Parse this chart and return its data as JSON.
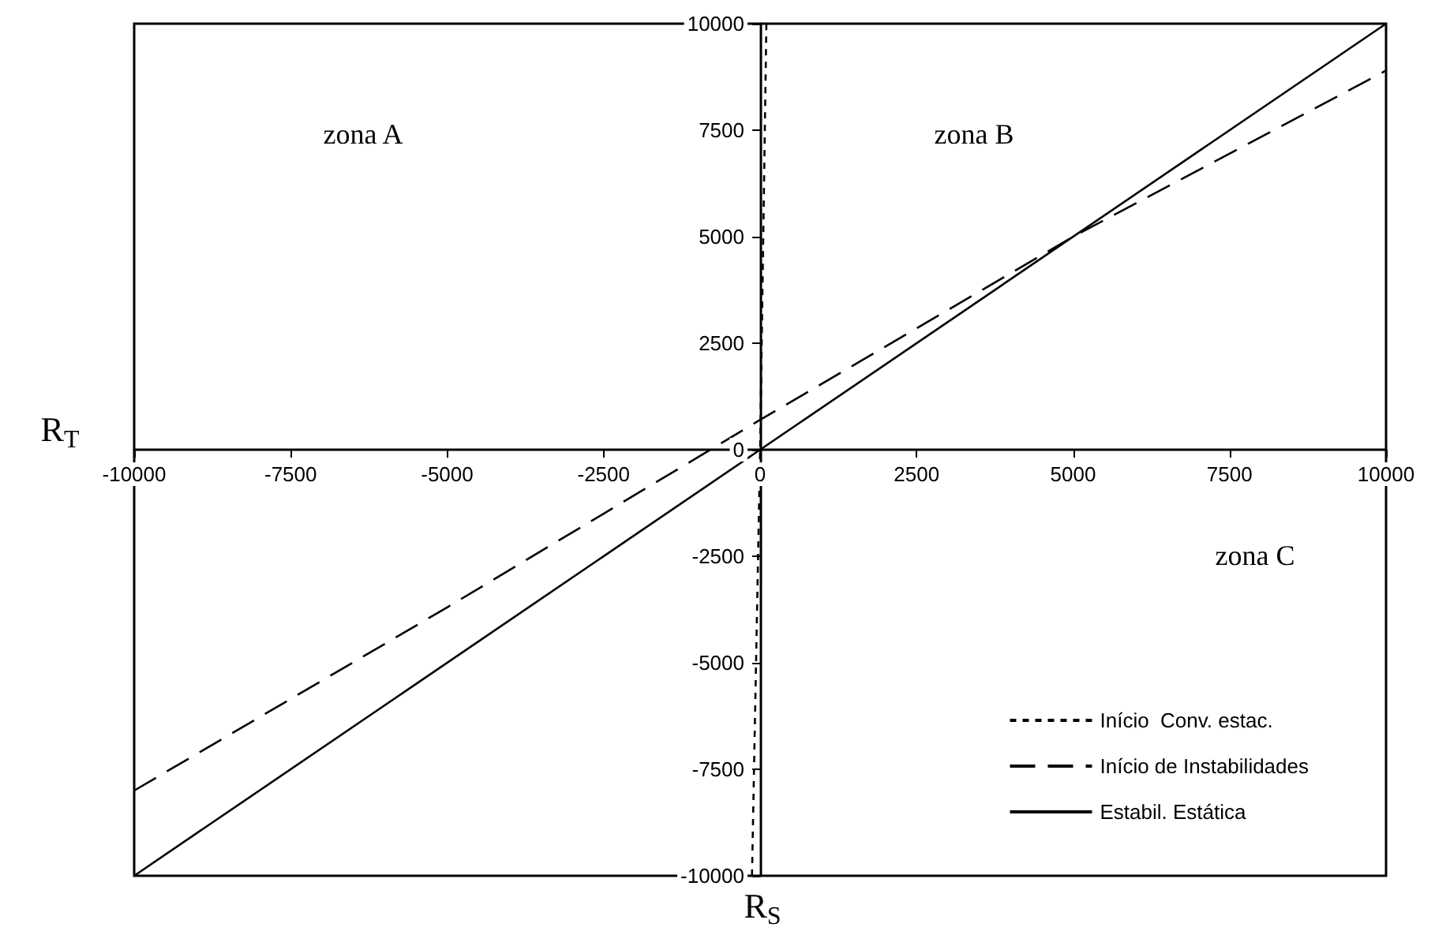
{
  "chart_data": {
    "type": "line",
    "xlabel": "R$_{S}$",
    "ylabel": "R$_{T}$",
    "xlim": [
      -10000,
      10000
    ],
    "ylim": [
      -10000,
      10000
    ],
    "xticks": [
      -10000,
      -7500,
      -5000,
      -2500,
      0,
      2500,
      5000,
      7500,
      10000
    ],
    "yticks": [
      -10000,
      -7500,
      -5000,
      -2500,
      0,
      2500,
      5000,
      7500,
      10000
    ],
    "series": [
      {
        "name": "Início  Conv. estac.",
        "color": "#000000",
        "line_style": "dotted",
        "x": [
          -130,
          0,
          100
        ],
        "values": [
          -10000,
          0,
          10000
        ]
      },
      {
        "name": "Início de Instabilidades",
        "color": "#000000",
        "line_style": "dashed",
        "x": [
          -10000,
          -5000,
          0,
          5000,
          10000
        ],
        "values": [
          -8000,
          -3700,
          700,
          5000,
          8900
        ]
      },
      {
        "name": "Estabil. Estática",
        "color": "#000000",
        "line_style": "solid",
        "x": [
          -10000,
          10000
        ],
        "values": [
          -10000,
          10000
        ]
      }
    ],
    "annotations": [
      "zona A",
      "zona B",
      "zona C"
    ],
    "marker": "none",
    "legend": "bottom right"
  }
}
